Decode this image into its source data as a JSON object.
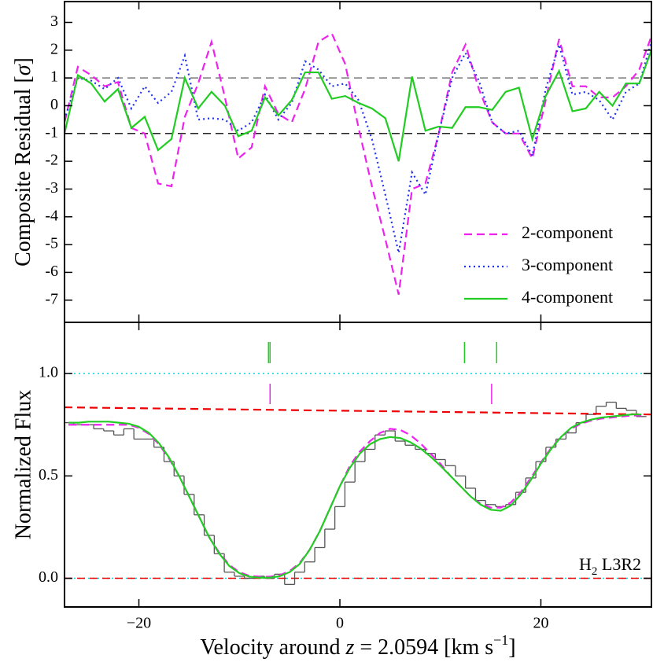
{
  "chart_data": [
    {
      "type": "line",
      "ylabel_parts": [
        "Composite Residual [",
        "σ",
        "]"
      ],
      "x": [
        -27.4,
        -26.07,
        -24.74,
        -23.41,
        -22.08,
        -20.75,
        -19.42,
        -18.09,
        -16.76,
        -15.43,
        -14.1,
        -12.77,
        -11.44,
        -10.11,
        -8.78,
        -7.45,
        -6.12,
        -4.79,
        -3.46,
        -2.13,
        -0.8,
        0.53,
        1.86,
        3.19,
        4.52,
        5.85,
        7.18,
        8.51,
        9.84,
        11.17,
        12.5,
        13.83,
        15.16,
        16.49,
        17.82,
        19.15,
        20.48,
        21.81,
        23.14,
        24.47,
        25.8,
        27.13,
        28.46,
        29.79,
        31.0
      ],
      "series": [
        {
          "name": "2-component",
          "color": "#ee22ee",
          "style": "dashed",
          "values": [
            -0.6,
            1.4,
            1.1,
            0.7,
            0.85,
            -0.8,
            -1.0,
            -2.8,
            -2.9,
            -0.4,
            0.8,
            2.3,
            0.3,
            -1.9,
            -1.5,
            0.7,
            -0.3,
            -0.6,
            0.6,
            2.3,
            2.6,
            1.5,
            -0.8,
            -2.9,
            -4.8,
            -6.8,
            -3.0,
            -2.8,
            -1.0,
            1.2,
            2.2,
            0.6,
            -0.6,
            -1.0,
            -1.0,
            -1.9,
            0.2,
            2.4,
            0.7,
            0.7,
            0.3,
            0.3,
            0.7,
            1.3,
            2.5
          ]
        },
        {
          "name": "3-component",
          "color": "#2233ee",
          "style": "dotted",
          "values": [
            -0.5,
            1.0,
            0.9,
            0.6,
            1.0,
            -0.1,
            0.7,
            0.1,
            0.5,
            1.8,
            -0.5,
            -0.45,
            -0.5,
            -0.9,
            -0.6,
            0.4,
            -0.5,
            0.1,
            1.6,
            1.3,
            0.7,
            0.8,
            0.2,
            -1.2,
            -3.2,
            -5.3,
            -2.4,
            -3.2,
            -1.0,
            1.0,
            1.9,
            0.9,
            -0.6,
            -1.0,
            -0.9,
            -1.8,
            0.6,
            2.2,
            0.4,
            0.5,
            0.2,
            -0.5,
            0.5,
            0.8,
            2.3
          ]
        },
        {
          "name": "4-component",
          "color": "#22cc22",
          "style": "solid",
          "values": [
            -1.0,
            1.1,
            0.8,
            0.15,
            0.6,
            -0.8,
            -0.4,
            -1.6,
            -1.2,
            1.0,
            -0.1,
            0.5,
            0.0,
            -1.1,
            -0.9,
            0.3,
            -0.35,
            0.2,
            1.2,
            1.2,
            0.25,
            0.35,
            0.1,
            -0.1,
            -0.45,
            -2.0,
            1.05,
            -0.9,
            -0.75,
            -0.8,
            -0.05,
            -0.05,
            -0.15,
            0.5,
            0.65,
            -1.2,
            0.35,
            1.25,
            -0.2,
            -0.1,
            0.5,
            0.0,
            0.8,
            0.8,
            2.0
          ]
        }
      ],
      "xlim": [
        -27.4,
        31.0
      ],
      "ylim": [
        -7.8,
        3.75
      ],
      "yticks": [
        -7,
        -6,
        -5,
        -4,
        -3,
        -2,
        -1,
        0,
        1,
        2,
        3
      ],
      "hlines": [
        {
          "value": -1,
          "color": "#222222",
          "style": "dashed"
        },
        {
          "value": 1,
          "color": "#777777",
          "style": "dashed"
        }
      ],
      "legend": "lower right"
    },
    {
      "type": "spectrum",
      "ylabel": "Normalized Flux",
      "xlabel_parts": [
        "Velocity around ",
        "z",
        " = 2.0594 [km s",
        "−1",
        "]"
      ],
      "annotation_parts": [
        "H",
        "2",
        " L3R2"
      ],
      "data": {
        "color": "#555555",
        "bins": [
          -27.5,
          -26.5,
          -25.5,
          -24.5,
          -23.5,
          -22.5,
          -21.5,
          -20.5,
          -19.5,
          -18.5,
          -17.5,
          -16.5,
          -15.5,
          -14.5,
          -13.5,
          -12.5,
          -11.5,
          -10.5,
          -9.5,
          -8.5,
          -7.5,
          -6.5,
          -5.5,
          -4.5,
          -3.5,
          -2.5,
          -1.5,
          -0.5,
          0.5,
          1.5,
          2.5,
          3.5,
          4.5,
          5.5,
          6.5,
          7.5,
          8.5,
          9.5,
          10.5,
          11.5,
          12.5,
          13.5,
          14.5,
          15.5,
          16.5,
          17.5,
          18.5,
          19.5,
          20.5,
          21.5,
          22.5,
          23.5,
          24.5,
          25.5,
          26.5,
          27.5,
          28.5,
          29.5,
          30.5
        ],
        "values": [
          0.76,
          0.75,
          0.75,
          0.73,
          0.72,
          0.7,
          0.73,
          0.68,
          0.68,
          0.64,
          0.57,
          0.5,
          0.41,
          0.31,
          0.21,
          0.12,
          0.03,
          0.01,
          0.0,
          0.01,
          0.0,
          0.02,
          -0.03,
          0.03,
          0.08,
          0.15,
          0.24,
          0.35,
          0.47,
          0.57,
          0.63,
          0.7,
          0.72,
          0.67,
          0.65,
          0.63,
          0.61,
          0.58,
          0.55,
          0.5,
          0.44,
          0.38,
          0.36,
          0.35,
          0.36,
          0.42,
          0.49,
          0.57,
          0.64,
          0.68,
          0.71,
          0.76,
          0.8,
          0.84,
          0.86,
          0.83,
          0.82,
          0.79
        ]
      },
      "series": [
        {
          "color": "#ee0000",
          "style": "dashed",
          "x": [
            -27.4,
            31.0
          ],
          "values": [
            0.835,
            0.8
          ]
        },
        {
          "color": "#ee22ee",
          "style": "dashed",
          "x": [
            -27,
            -26,
            -25,
            -24,
            -23,
            -22,
            -21,
            -20,
            -19,
            -18,
            -17,
            -16,
            -15,
            -14,
            -13,
            -12,
            -11,
            -10,
            -9,
            -8,
            -7,
            -6,
            -5,
            -4,
            -3,
            -2,
            -1,
            0,
            1,
            2,
            3,
            4,
            5,
            6,
            7,
            8,
            9,
            10,
            11,
            12,
            13,
            14,
            15,
            16,
            17,
            18,
            19,
            20,
            21,
            22,
            23,
            24,
            25,
            26,
            27,
            28,
            29,
            30
          ],
          "values": [
            0.75,
            0.75,
            0.75,
            0.75,
            0.75,
            0.75,
            0.75,
            0.735,
            0.705,
            0.655,
            0.585,
            0.5,
            0.4,
            0.3,
            0.2,
            0.125,
            0.065,
            0.03,
            0.012,
            0.008,
            0.008,
            0.015,
            0.035,
            0.075,
            0.14,
            0.23,
            0.34,
            0.45,
            0.55,
            0.62,
            0.67,
            0.71,
            0.73,
            0.725,
            0.7,
            0.66,
            0.61,
            0.56,
            0.5,
            0.45,
            0.4,
            0.365,
            0.345,
            0.345,
            0.37,
            0.42,
            0.49,
            0.565,
            0.635,
            0.69,
            0.73,
            0.755,
            0.77,
            0.78,
            0.785,
            0.79,
            0.795,
            0.795
          ]
        },
        {
          "color": "#22cc22",
          "style": "solid",
          "x": [
            -27,
            -26,
            -25,
            -24,
            -23,
            -22,
            -21,
            -20,
            -19,
            -18,
            -17,
            -16,
            -15,
            -14,
            -13,
            -12,
            -11,
            -10,
            -9,
            -8,
            -7,
            -6,
            -5,
            -4,
            -3,
            -2,
            -1,
            0,
            1,
            2,
            3,
            4,
            5,
            6,
            7,
            8,
            9,
            10,
            11,
            12,
            13,
            14,
            15,
            16,
            17,
            18,
            19,
            20,
            21,
            22,
            23,
            24,
            25,
            26,
            27,
            28,
            29,
            30
          ],
          "values": [
            0.76,
            0.76,
            0.765,
            0.765,
            0.765,
            0.76,
            0.755,
            0.74,
            0.71,
            0.66,
            0.59,
            0.5,
            0.4,
            0.3,
            0.2,
            0.12,
            0.06,
            0.025,
            0.008,
            0.003,
            0.003,
            0.01,
            0.03,
            0.07,
            0.14,
            0.23,
            0.34,
            0.45,
            0.54,
            0.61,
            0.655,
            0.68,
            0.69,
            0.685,
            0.665,
            0.635,
            0.595,
            0.55,
            0.5,
            0.45,
            0.4,
            0.36,
            0.335,
            0.33,
            0.355,
            0.41,
            0.48,
            0.56,
            0.63,
            0.69,
            0.735,
            0.76,
            0.775,
            0.785,
            0.79,
            0.795,
            0.8,
            0.8
          ]
        }
      ],
      "components": [
        {
          "color": "#22cc22",
          "x": [
            -7.1,
            -6.95,
            12.4,
            15.6
          ]
        },
        {
          "color": "#ee22ee",
          "x": [
            -6.95,
            15.1
          ]
        }
      ],
      "hlines": [
        {
          "value": 1.0,
          "color": "#00dddd",
          "style": "dotted"
        },
        {
          "value": 0.0,
          "color": "#00dddd",
          "style": "dotted"
        },
        {
          "value": 0.0,
          "color": "#ee0000",
          "style": "dashed"
        }
      ],
      "xlim": [
        -27.4,
        31.0
      ],
      "ylim": [
        -0.14,
        1.25
      ],
      "xticks": [
        {
          "value": -20,
          "label": "−20"
        },
        0,
        20
      ],
      "yticks": [
        {
          "value": 0,
          "label": "0.0"
        },
        {
          "value": 0.5,
          "label": "0.5"
        },
        {
          "value": 1.0,
          "label": "1.0"
        }
      ]
    }
  ]
}
